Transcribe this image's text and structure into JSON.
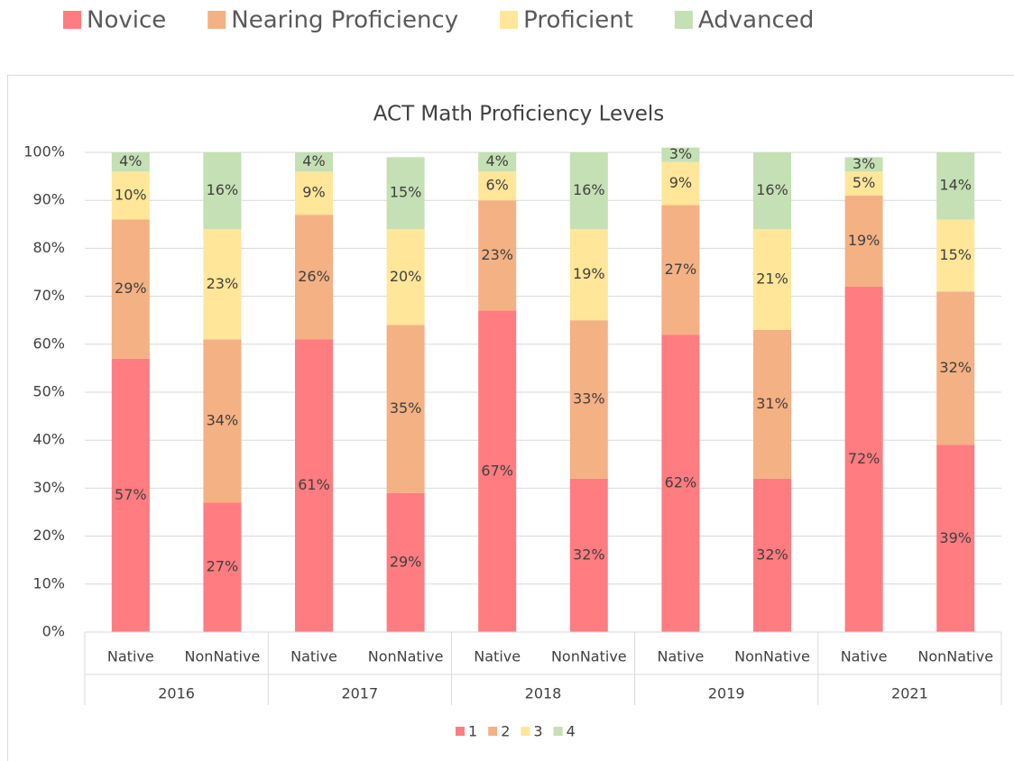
{
  "top_legend": [
    "Novice",
    "Nearing Proficiency",
    "Proficient",
    "Advanced"
  ],
  "chart_data": {
    "type": "stacked_bar",
    "title": "ACT Math Proficiency Levels",
    "groups": [
      {
        "name": "2016",
        "categories": [
          "Native",
          "NonNative"
        ]
      },
      {
        "name": "2017",
        "categories": [
          "Native",
          "NonNative"
        ]
      },
      {
        "name": "2018",
        "categories": [
          "Native",
          "NonNative"
        ]
      },
      {
        "name": "2019",
        "categories": [
          "Native",
          "NonNative"
        ]
      },
      {
        "name": "2021",
        "categories": [
          "Native",
          "NonNative"
        ]
      }
    ],
    "series": [
      {
        "name": "1",
        "color": "#ff7c80",
        "values": [
          57,
          27,
          61,
          29,
          67,
          32,
          62,
          32,
          72,
          39
        ],
        "value_labels": [
          "57%",
          "27%",
          "61%",
          "29%",
          "67%",
          "32%",
          "62%",
          "32%",
          "72%",
          "39%"
        ]
      },
      {
        "name": "2",
        "color": "#f4b183",
        "values": [
          29,
          34,
          26,
          35,
          23,
          33,
          27,
          31,
          19,
          32
        ],
        "value_labels": [
          "29%",
          "34%",
          "26%",
          "35%",
          "23%",
          "33%",
          "27%",
          "31%",
          "19%",
          "32%"
        ]
      },
      {
        "name": "3",
        "color": "#ffe699",
        "values": [
          10,
          23,
          9,
          20,
          6,
          19,
          9,
          21,
          5,
          15
        ],
        "value_labels": [
          "10%",
          "23%",
          "9%",
          "20%",
          "6%",
          "19%",
          "9%",
          "21%",
          "5%",
          "15%"
        ]
      },
      {
        "name": "4",
        "color": "#c5e0b4",
        "values": [
          4,
          16,
          4,
          15,
          4,
          16,
          3,
          16,
          3,
          14
        ],
        "value_labels": [
          "4%",
          "16%",
          "4%",
          "15%",
          "4%",
          "16%",
          "3%",
          "16%",
          "3%",
          "14%"
        ]
      }
    ],
    "ylim": [
      0,
      100
    ],
    "yticks": [
      {
        "value": 0,
        "label": "0%"
      },
      {
        "value": 10,
        "label": "10%"
      },
      {
        "value": 20,
        "label": "20%"
      },
      {
        "value": 30,
        "label": "30%"
      },
      {
        "value": 40,
        "label": "40%"
      },
      {
        "value": 50,
        "label": "50%"
      },
      {
        "value": 60,
        "label": "60%"
      },
      {
        "value": 70,
        "label": "70%"
      },
      {
        "value": 80,
        "label": "80%"
      },
      {
        "value": 90,
        "label": "90%"
      },
      {
        "value": 100,
        "label": "100%"
      }
    ],
    "grid": true,
    "legend": "bottom"
  }
}
